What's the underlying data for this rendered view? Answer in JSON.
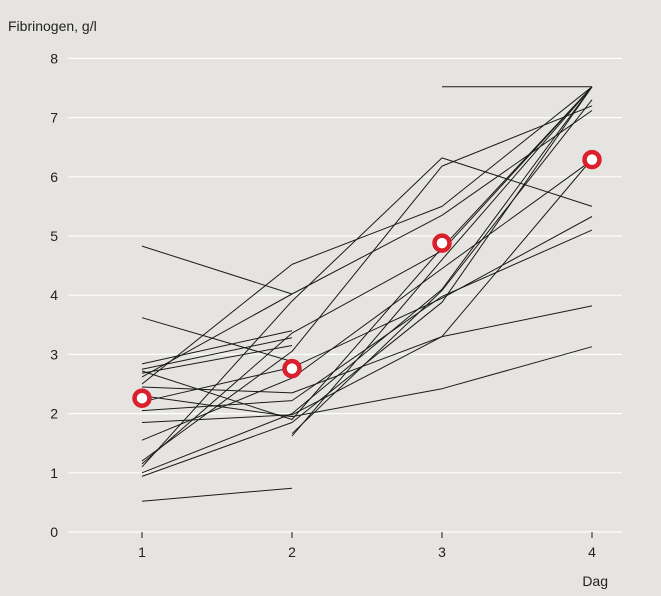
{
  "colors": {
    "background": "#e6e4e1",
    "grid": "#ffffff",
    "line": "#1a1a1a",
    "mean_marker": "#d9202c",
    "axis_text": "#222222"
  },
  "chart_data": {
    "type": "line",
    "ylabel": "Fibrinogen, g/l",
    "xlabel": "Dag",
    "x_ticks": [
      1,
      2,
      3,
      4
    ],
    "y_ticks": [
      0,
      1,
      2,
      3,
      4,
      5,
      6,
      7,
      8
    ],
    "xlim": [
      0.5,
      4.2
    ],
    "ylim": [
      0,
      8
    ],
    "grid": "horizontal",
    "series": [
      {
        "x": [
          1,
          2
        ],
        "y": [
          0.52,
          0.74
        ]
      },
      {
        "x": [
          1,
          2,
          3,
          4
        ],
        "y": [
          2.45,
          2.35,
          3.3,
          3.82
        ]
      },
      {
        "x": [
          1,
          2,
          3,
          4
        ],
        "y": [
          2.3,
          1.95,
          2.42,
          3.13
        ]
      },
      {
        "x": [
          1,
          2
        ],
        "y": [
          4.83,
          4.02
        ]
      },
      {
        "x": [
          1,
          2
        ],
        "y": [
          3.62,
          2.88
        ]
      },
      {
        "x": [
          1,
          2
        ],
        "y": [
          2.84,
          3.4
        ]
      },
      {
        "x": [
          1,
          2
        ],
        "y": [
          2.75,
          3.28
        ]
      },
      {
        "x": [
          1,
          2
        ],
        "y": [
          2.68,
          3.15
        ]
      },
      {
        "x": [
          1,
          2,
          3,
          4
        ],
        "y": [
          2.2,
          2.78,
          3.95,
          5.33
        ]
      },
      {
        "x": [
          1,
          2,
          3,
          4
        ],
        "y": [
          2.05,
          2.22,
          3.98,
          5.1
        ]
      },
      {
        "x": [
          1,
          2,
          3,
          4
        ],
        "y": [
          1.85,
          1.98,
          3.3,
          6.3
        ]
      },
      {
        "x": [
          1,
          2,
          3,
          4
        ],
        "y": [
          1.55,
          2.6,
          4.45,
          6.28
        ]
      },
      {
        "x": [
          1,
          2,
          3,
          4
        ],
        "y": [
          2.5,
          4.52,
          5.5,
          7.52
        ]
      },
      {
        "x": [
          1,
          2,
          3,
          4
        ],
        "y": [
          2.62,
          4.02,
          5.35,
          7.12
        ]
      },
      {
        "x": [
          1,
          2,
          3,
          4
        ],
        "y": [
          1.2,
          3.05,
          6.18,
          7.2
        ]
      },
      {
        "x": [
          1,
          2,
          3,
          4
        ],
        "y": [
          1.1,
          3.9,
          6.32,
          5.5
        ]
      },
      {
        "x": [
          1,
          2,
          3,
          4
        ],
        "y": [
          1.0,
          2.0,
          4.1,
          7.52
        ]
      },
      {
        "x": [
          1,
          2,
          3,
          4
        ],
        "y": [
          0.94,
          1.85,
          3.88,
          7.52
        ]
      },
      {
        "x": [
          1,
          2,
          3,
          4
        ],
        "y": [
          1.15,
          3.36,
          4.75,
          7.52
        ]
      },
      {
        "x": [
          1,
          2,
          3,
          4
        ],
        "y": [
          2.72,
          1.9,
          4.8,
          7.52
        ]
      },
      {
        "x": [
          2,
          3,
          4
        ],
        "y": [
          1.62,
          4.6,
          7.52
        ]
      },
      {
        "x": [
          2,
          3,
          4
        ],
        "y": [
          1.66,
          4.08,
          7.3
        ]
      },
      {
        "x": [
          3,
          4
        ],
        "y": [
          7.52,
          7.52
        ]
      }
    ],
    "mean_points": {
      "x": [
        1,
        2,
        3,
        4
      ],
      "y": [
        2.26,
        2.76,
        4.88,
        6.29
      ]
    }
  }
}
